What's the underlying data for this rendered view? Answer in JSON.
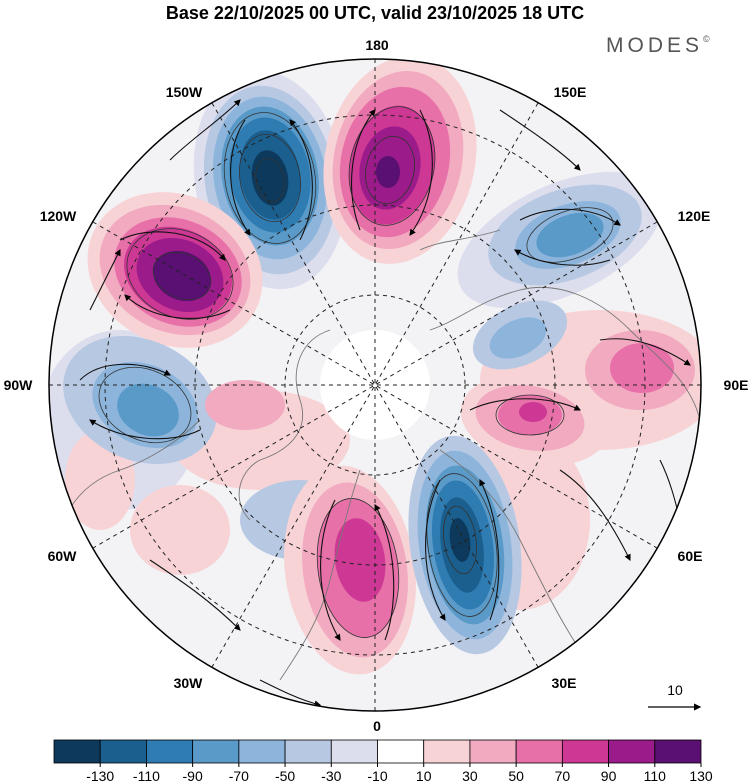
{
  "title": "Base 22/10/2025 00 UTC, valid 23/10/2025 18 UTC",
  "brand": {
    "name": "MODES",
    "mark": "©"
  },
  "map": {
    "projection": "north-polar-stereographic",
    "longitude_labels": {
      "top": "180",
      "top_right": "150E",
      "right_upper": "120E",
      "right": "90E",
      "right_lower": "60E",
      "bottom_right": "30E",
      "bottom": "0",
      "bottom_left": "30W",
      "left_lower": "60W",
      "left": "90W",
      "left_upper": "120W",
      "top_left": "150W"
    },
    "vector_reference": {
      "value": "10"
    }
  },
  "colorbar": {
    "ticks": [
      "-130",
      "-110",
      "-90",
      "-70",
      "-50",
      "-30",
      "-10",
      "10",
      "30",
      "50",
      "70",
      "90",
      "110",
      "130"
    ],
    "colors": [
      "#0d3a5c",
      "#1a5f8e",
      "#2f7cb3",
      "#5a9ac9",
      "#8db5dc",
      "#b7c8e3",
      "#dcdded",
      "#ffffff",
      "#f8d3d6",
      "#f1aac0",
      "#e870a8",
      "#cc3894",
      "#9b1b8a",
      "#5a0f73"
    ]
  },
  "colors": {
    "ocean_blue": "#2f7cb3",
    "pink": "#e870a8",
    "purple": "#5a0f73"
  }
}
